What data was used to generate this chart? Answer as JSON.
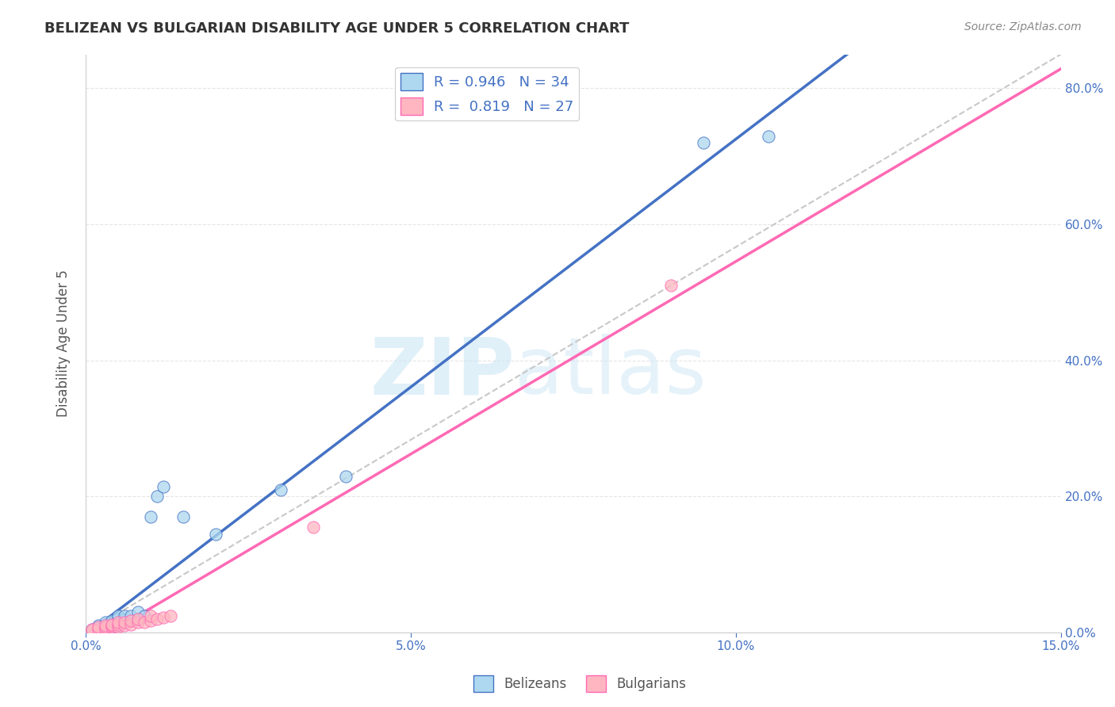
{
  "title": "BELIZEAN VS BULGARIAN DISABILITY AGE UNDER 5 CORRELATION CHART",
  "source": "Source: ZipAtlas.com",
  "xlabel": "",
  "ylabel": "Disability Age Under 5",
  "xlim": [
    0.0,
    0.15
  ],
  "ylim": [
    0.0,
    0.85
  ],
  "xticks": [
    0.0,
    0.05,
    0.1,
    0.15
  ],
  "xtick_labels": [
    "0.0%",
    "5.0%",
    "10.0%",
    "15.0%"
  ],
  "ytick_labels_right": [
    "0.0%",
    "20.0%",
    "40.0%",
    "60.0%",
    "80.0%"
  ],
  "yticks_right": [
    0.0,
    0.2,
    0.4,
    0.6,
    0.8
  ],
  "belizean_color": "#ADD8F0",
  "bulgarian_color": "#FFB6C1",
  "belizean_line_color": "#4472C4",
  "bulgarian_line_color": "#FF69B4",
  "ref_line_color": "#C8C8C8",
  "R_belizean": 0.946,
  "N_belizean": 34,
  "R_bulgarian": 0.819,
  "N_bulgarian": 27,
  "legend_label_1": "Belizeans",
  "legend_label_2": "Bulgarians",
  "watermark_zip": "ZIP",
  "watermark_atlas": "atlas",
  "title_color": "#333333",
  "axis_label_color": "#555555",
  "tick_color": "#4472C4",
  "background_color": "#FFFFFF",
  "belizean_scatter_x": [
    0.001,
    0.001,
    0.002,
    0.002,
    0.002,
    0.003,
    0.003,
    0.003,
    0.003,
    0.003,
    0.004,
    0.004,
    0.004,
    0.005,
    0.005,
    0.005,
    0.005,
    0.006,
    0.006,
    0.006,
    0.007,
    0.007,
    0.008,
    0.008,
    0.009,
    0.01,
    0.011,
    0.012,
    0.015,
    0.02,
    0.03,
    0.04,
    0.095,
    0.105
  ],
  "belizean_scatter_y": [
    0.003,
    0.005,
    0.005,
    0.008,
    0.01,
    0.005,
    0.007,
    0.01,
    0.012,
    0.015,
    0.008,
    0.012,
    0.018,
    0.01,
    0.015,
    0.02,
    0.025,
    0.015,
    0.02,
    0.025,
    0.018,
    0.025,
    0.02,
    0.03,
    0.025,
    0.17,
    0.2,
    0.215,
    0.17,
    0.145,
    0.21,
    0.23,
    0.72,
    0.73
  ],
  "bulgarian_scatter_x": [
    0.001,
    0.001,
    0.002,
    0.002,
    0.003,
    0.003,
    0.003,
    0.004,
    0.004,
    0.004,
    0.005,
    0.005,
    0.005,
    0.006,
    0.006,
    0.007,
    0.007,
    0.008,
    0.008,
    0.009,
    0.01,
    0.01,
    0.011,
    0.012,
    0.013,
    0.035,
    0.09
  ],
  "bulgarian_scatter_y": [
    0.003,
    0.005,
    0.005,
    0.008,
    0.005,
    0.008,
    0.01,
    0.008,
    0.01,
    0.012,
    0.008,
    0.012,
    0.015,
    0.01,
    0.015,
    0.012,
    0.018,
    0.015,
    0.02,
    0.015,
    0.018,
    0.025,
    0.02,
    0.022,
    0.025,
    0.155,
    0.51
  ],
  "grid_color": "#E5E5E5",
  "belizean_line_x": [
    0.0,
    0.15
  ],
  "belizean_line_y": [
    0.0,
    0.82
  ],
  "bulgarian_line_x": [
    0.0,
    0.15
  ],
  "bulgarian_line_y": [
    0.02,
    0.76
  ]
}
